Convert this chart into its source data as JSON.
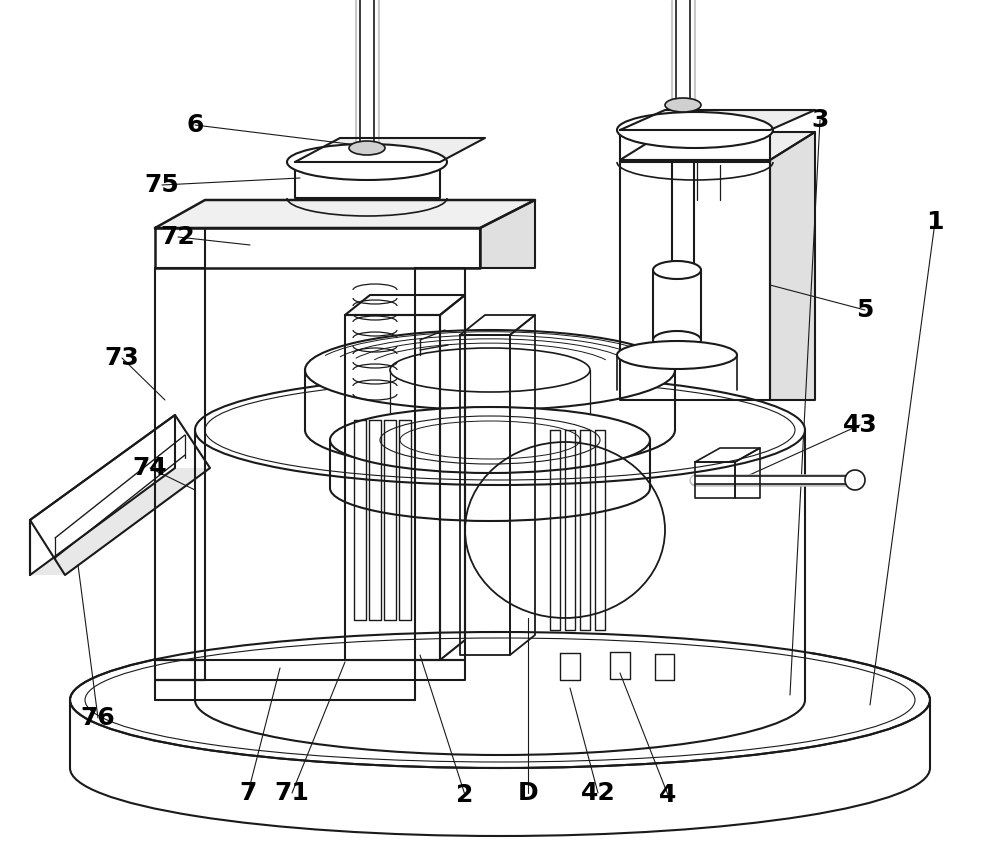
{
  "background_color": "#ffffff",
  "line_color": "#1a1a1a",
  "label_color": "#000000",
  "label_fontsize": 18,
  "fig_width": 10.0,
  "fig_height": 8.49,
  "dpi": 100
}
